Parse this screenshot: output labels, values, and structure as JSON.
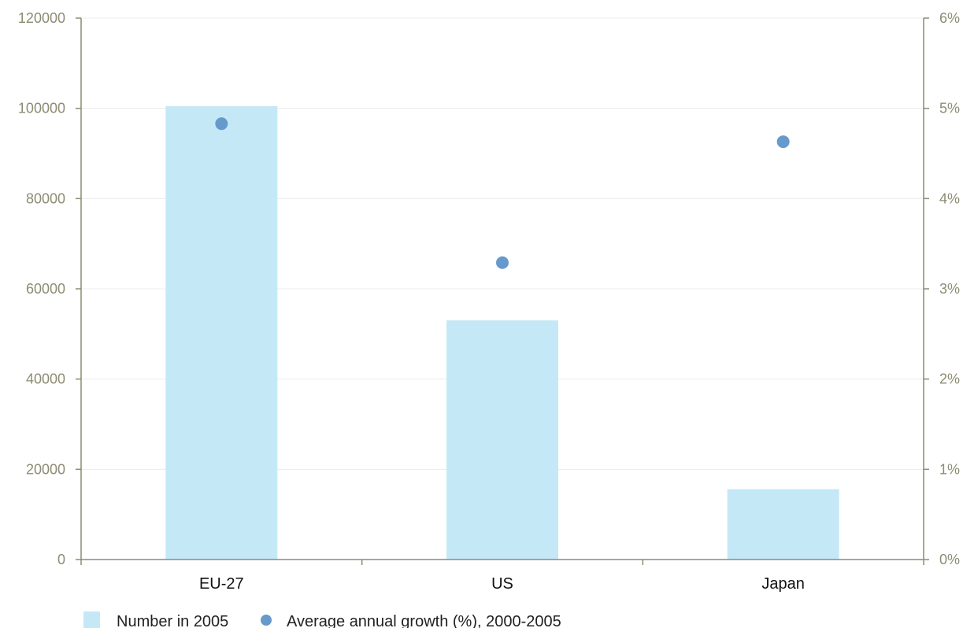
{
  "chart_data": {
    "type": "bar",
    "title": "",
    "xlabel": "",
    "ylabel": "",
    "categories": [
      "EU-27",
      "US",
      "Japan"
    ],
    "series": [
      {
        "name": "Number in 2005",
        "type": "bar",
        "axis": "left",
        "values": [
          100500,
          53000,
          15600
        ],
        "color": "#c5e8f7"
      },
      {
        "name": "Average annual growth (%), 2000-2005",
        "type": "scatter",
        "axis": "right",
        "values": [
          4.83,
          3.29,
          4.63
        ],
        "color": "#6699cc"
      }
    ],
    "y_left": {
      "min": 0,
      "max": 120000,
      "ticks": [
        0,
        20000,
        40000,
        60000,
        80000,
        100000,
        120000
      ],
      "tick_labels": [
        "0",
        "20000",
        "40000",
        "60000",
        "80000",
        "100000",
        "120000"
      ]
    },
    "y_right": {
      "min": 0,
      "max": 6,
      "ticks": [
        0,
        1,
        2,
        3,
        4,
        5,
        6
      ],
      "tick_labels": [
        "0%",
        "1%",
        "2%",
        "3%",
        "4%",
        "5%",
        "6%"
      ]
    },
    "grid": true,
    "legend": "bottom-left",
    "colors": {
      "axis": "#8c8c74",
      "grid": "#ececec",
      "tick_text": "#8c8c74"
    }
  }
}
